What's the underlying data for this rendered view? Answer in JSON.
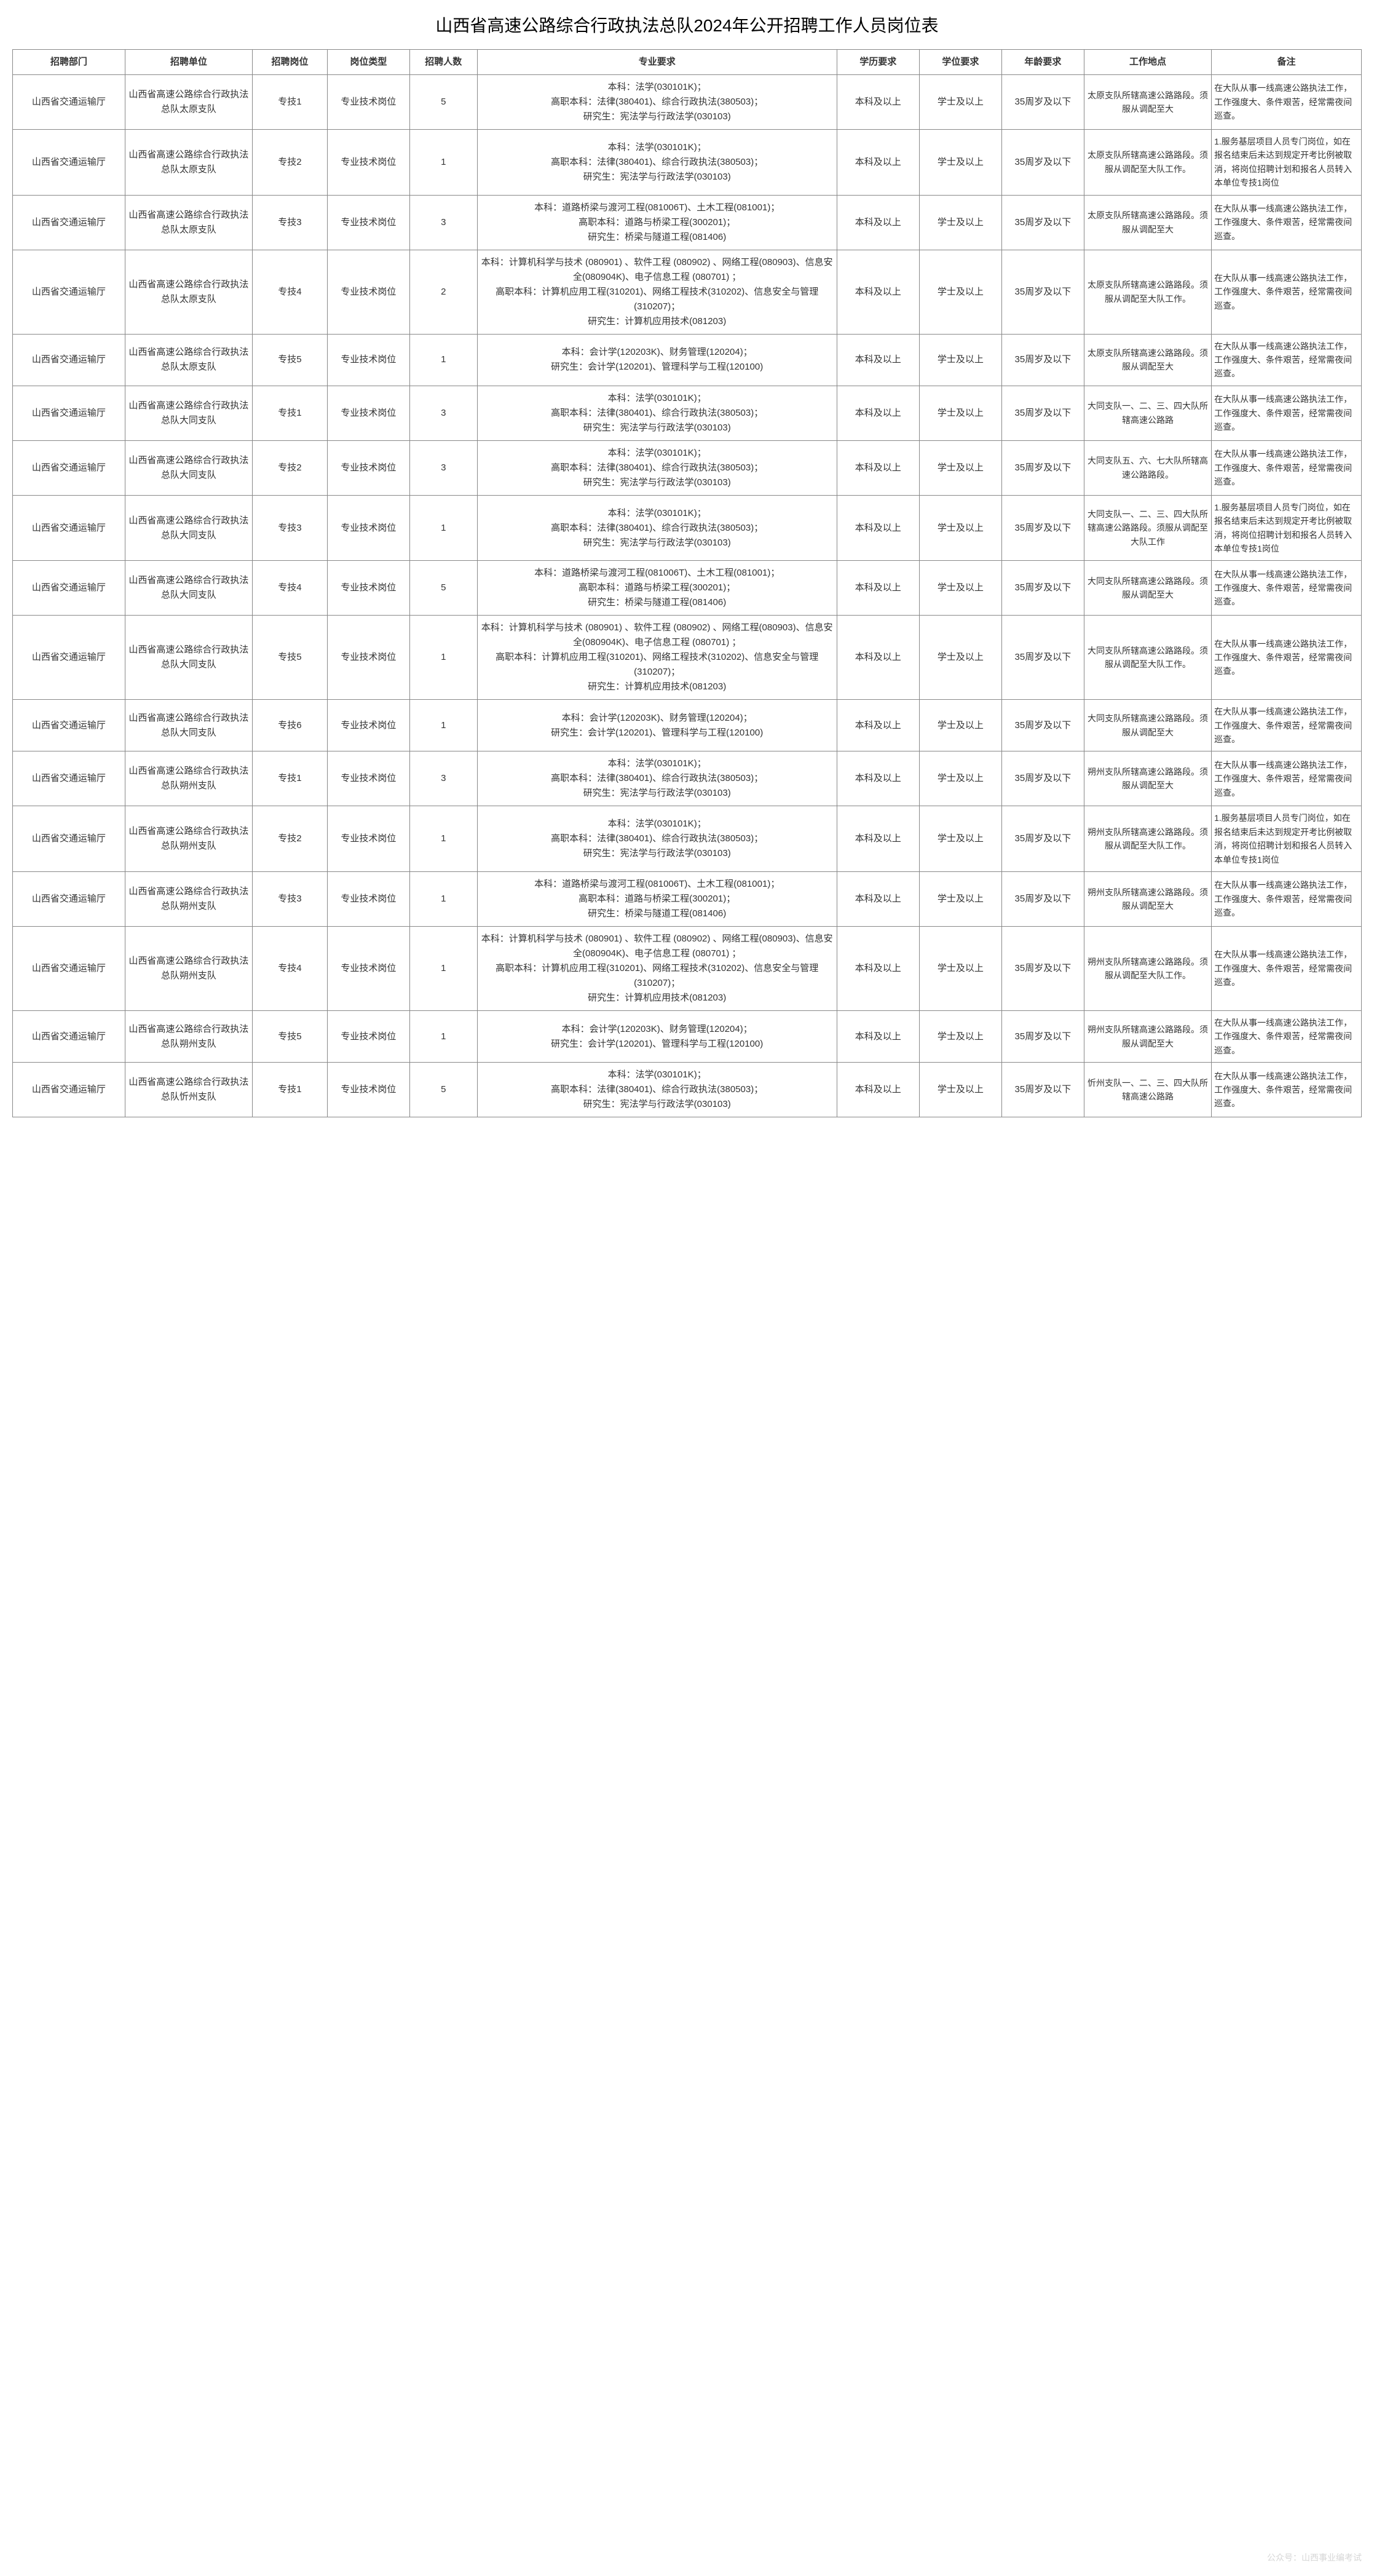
{
  "title": "山西省高速公路综合行政执法总队2024年公开招聘工作人员岗位表",
  "headers": {
    "dept": "招聘部门",
    "unit": "招聘单位",
    "post": "招聘岗位",
    "type": "岗位类型",
    "count": "招聘人数",
    "major": "专业要求",
    "edu": "学历要求",
    "degree": "学位要求",
    "age": "年龄要求",
    "location": "工作地点",
    "remark": "备注"
  },
  "common": {
    "dept": "山西省交通运输厅",
    "type": "专业技术岗位",
    "edu": "本科及以上",
    "degree": "学士及以上",
    "age": "35周岁及以下",
    "remark_frontline": "在大队从事一线高速公路执法工作，工作强度大、条件艰苦，经常需夜间巡查。",
    "remark_grassroots": "1.服务基层项目人员专门岗位，如在报名结束后未达到规定开考比例被取消，将岗位招聘计划和报名人员转入本单位专技1岗位"
  },
  "majors": {
    "law": "本科：法学(030101K)；\n高职本科：法律(380401)、综合行政执法(380503)；\n研究生：宪法学与行政法学(030103)",
    "bridge": "本科：道路桥梁与渡河工程(081006T)、土木工程(081001)；\n高职本科：道路与桥梁工程(300201)；\n研究生：桥梁与隧道工程(081406)",
    "cs": "本科：计算机科学与技术 (080901) 、软件工程 (080902) 、网络工程(080903)、信息安全(080904K)、电子信息工程 (080701) ；\n高职本科：计算机应用工程(310201)、网络工程技术(310202)、信息安全与管理(310207)；\n研究生：计算机应用技术(081203)",
    "acc": "本科：会计学(120203K)、财务管理(120204)；\n研究生：会计学(120201)、管理科学与工程(120100)"
  },
  "rows": [
    {
      "unit": "山西省高速公路综合行政执法总队太原支队",
      "post": "专技1",
      "count": "5",
      "majorKey": "law",
      "loc": "太原支队所辖高速公路路段。须服从调配至大",
      "remarkKey": "frontline"
    },
    {
      "unit": "山西省高速公路综合行政执法总队太原支队",
      "post": "专技2",
      "count": "1",
      "majorKey": "law",
      "loc": "太原支队所辖高速公路路段。须服从调配至大队工作。",
      "remarkKey": "grassroots"
    },
    {
      "unit": "山西省高速公路综合行政执法总队太原支队",
      "post": "专技3",
      "count": "3",
      "majorKey": "bridge",
      "loc": "太原支队所辖高速公路路段。须服从调配至大",
      "remarkKey": "frontline"
    },
    {
      "unit": "山西省高速公路综合行政执法总队太原支队",
      "post": "专技4",
      "count": "2",
      "majorKey": "cs",
      "loc": "太原支队所辖高速公路路段。须服从调配至大队工作。",
      "remarkKey": "frontline"
    },
    {
      "unit": "山西省高速公路综合行政执法总队太原支队",
      "post": "专技5",
      "count": "1",
      "majorKey": "acc",
      "loc": "太原支队所辖高速公路路段。须服从调配至大",
      "remarkKey": "frontline"
    },
    {
      "unit": "山西省高速公路综合行政执法总队大同支队",
      "post": "专技1",
      "count": "3",
      "majorKey": "law",
      "loc": "大同支队一、二、三、四大队所辖高速公路路",
      "remarkKey": "frontline"
    },
    {
      "unit": "山西省高速公路综合行政执法总队大同支队",
      "post": "专技2",
      "count": "3",
      "majorKey": "law",
      "loc": "大同支队五、六、七大队所辖高速公路路段。",
      "remarkKey": "frontline"
    },
    {
      "unit": "山西省高速公路综合行政执法总队大同支队",
      "post": "专技3",
      "count": "1",
      "majorKey": "law",
      "loc": "大同支队一、二、三、四大队所辖高速公路路段。须服从调配至大队工作",
      "remarkKey": "grassroots"
    },
    {
      "unit": "山西省高速公路综合行政执法总队大同支队",
      "post": "专技4",
      "count": "5",
      "majorKey": "bridge",
      "loc": "大同支队所辖高速公路路段。须服从调配至大",
      "remarkKey": "frontline"
    },
    {
      "unit": "山西省高速公路综合行政执法总队大同支队",
      "post": "专技5",
      "count": "1",
      "majorKey": "cs",
      "loc": "大同支队所辖高速公路路段。须服从调配至大队工作。",
      "remarkKey": "frontline"
    },
    {
      "unit": "山西省高速公路综合行政执法总队大同支队",
      "post": "专技6",
      "count": "1",
      "majorKey": "acc",
      "loc": "大同支队所辖高速公路路段。须服从调配至大",
      "remarkKey": "frontline"
    },
    {
      "unit": "山西省高速公路综合行政执法总队朔州支队",
      "post": "专技1",
      "count": "3",
      "majorKey": "law",
      "loc": "朔州支队所辖高速公路路段。须服从调配至大",
      "remarkKey": "frontline"
    },
    {
      "unit": "山西省高速公路综合行政执法总队朔州支队",
      "post": "专技2",
      "count": "1",
      "majorKey": "law",
      "loc": "朔州支队所辖高速公路路段。须服从调配至大队工作。",
      "remarkKey": "grassroots"
    },
    {
      "unit": "山西省高速公路综合行政执法总队朔州支队",
      "post": "专技3",
      "count": "1",
      "majorKey": "bridge",
      "loc": "朔州支队所辖高速公路路段。须服从调配至大",
      "remarkKey": "frontline"
    },
    {
      "unit": "山西省高速公路综合行政执法总队朔州支队",
      "post": "专技4",
      "count": "1",
      "majorKey": "cs",
      "loc": "朔州支队所辖高速公路路段。须服从调配至大队工作。",
      "remarkKey": "frontline"
    },
    {
      "unit": "山西省高速公路综合行政执法总队朔州支队",
      "post": "专技5",
      "count": "1",
      "majorKey": "acc",
      "loc": "朔州支队所辖高速公路路段。须服从调配至大",
      "remarkKey": "frontline"
    },
    {
      "unit": "山西省高速公路综合行政执法总队忻州支队",
      "post": "专技1",
      "count": "5",
      "majorKey": "law",
      "loc": "忻州支队一、二、三、四大队所辖高速公路路",
      "remarkKey": "frontline"
    }
  ],
  "watermark": "公众号：山西事业编考试"
}
